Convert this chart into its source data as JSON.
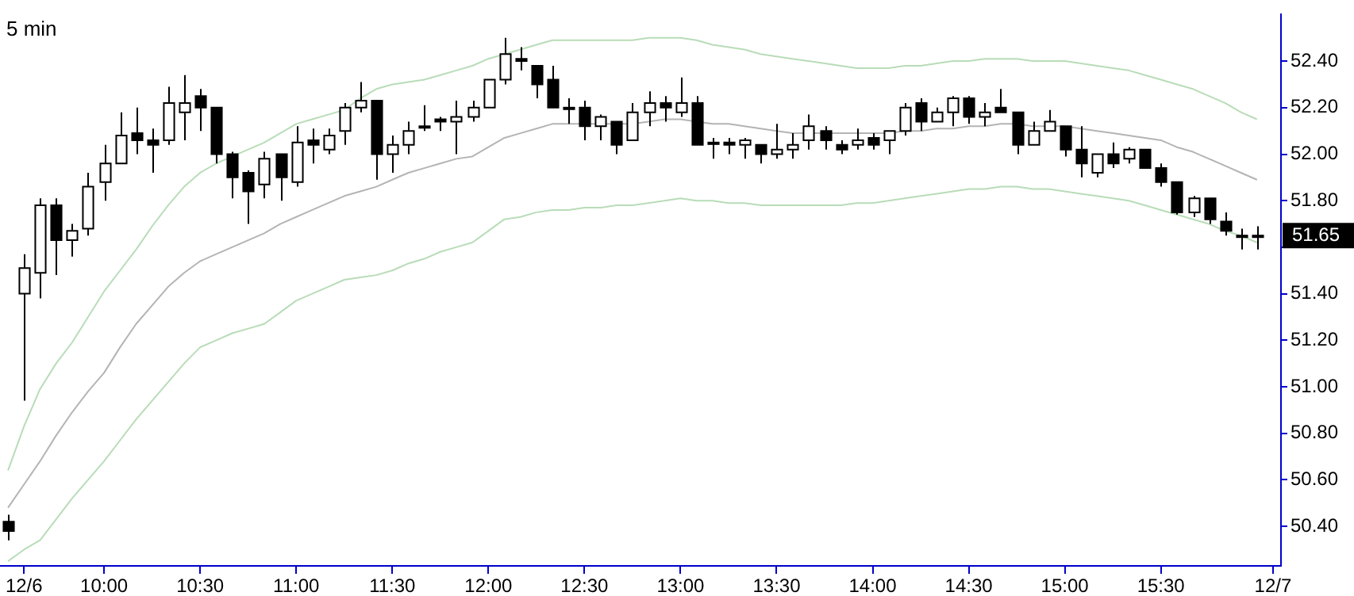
{
  "chart_data": {
    "type": "candlestick",
    "title": "5 min",
    "categories": [
      null,
      "12/6",
      null,
      null,
      null,
      null,
      "10:00",
      null,
      null,
      null,
      null,
      null,
      "10:30",
      null,
      null,
      null,
      null,
      null,
      "11:00",
      null,
      null,
      null,
      null,
      null,
      "11:30",
      null,
      null,
      null,
      null,
      null,
      "12:00",
      null,
      null,
      null,
      null,
      null,
      "12:30",
      null,
      null,
      null,
      null,
      null,
      "13:00",
      null,
      null,
      null,
      null,
      null,
      "13:30",
      null,
      null,
      null,
      null,
      null,
      "14:00",
      null,
      null,
      null,
      null,
      null,
      "14:30",
      null,
      null,
      null,
      null,
      null,
      "15:00",
      null,
      null,
      null,
      null,
      null,
      "15:30",
      null,
      null,
      null,
      null,
      null,
      null,
      "12/7"
    ],
    "ohlc": [
      [
        50.42,
        50.45,
        50.34,
        50.38
      ],
      [
        51.4,
        51.57,
        50.94,
        51.51
      ],
      [
        51.49,
        51.81,
        51.38,
        51.78
      ],
      [
        51.78,
        51.81,
        51.48,
        51.63
      ],
      [
        51.63,
        51.7,
        51.56,
        51.67
      ],
      [
        51.68,
        51.92,
        51.65,
        51.86
      ],
      [
        51.88,
        52.04,
        51.8,
        51.96
      ],
      [
        51.96,
        52.18,
        51.96,
        52.08
      ],
      [
        52.09,
        52.2,
        52.0,
        52.06
      ],
      [
        52.06,
        52.11,
        51.92,
        52.04
      ],
      [
        52.06,
        52.29,
        52.04,
        52.22
      ],
      [
        52.18,
        52.34,
        52.06,
        52.22
      ],
      [
        52.25,
        52.28,
        52.1,
        52.2
      ],
      [
        52.2,
        52.2,
        51.96,
        52.0
      ],
      [
        52.0,
        52.01,
        51.81,
        51.9
      ],
      [
        51.92,
        51.93,
        51.7,
        51.84
      ],
      [
        51.87,
        52.01,
        51.81,
        51.98
      ],
      [
        52.0,
        52.0,
        51.8,
        51.9
      ],
      [
        51.88,
        52.12,
        51.86,
        52.05
      ],
      [
        52.06,
        52.11,
        51.96,
        52.04
      ],
      [
        52.02,
        52.11,
        52.0,
        52.08
      ],
      [
        52.1,
        52.22,
        52.04,
        52.2
      ],
      [
        52.2,
        52.31,
        52.18,
        52.23
      ],
      [
        52.23,
        52.23,
        51.89,
        52.0
      ],
      [
        52.0,
        52.08,
        51.92,
        52.04
      ],
      [
        52.04,
        52.14,
        52.0,
        52.1
      ],
      [
        52.12,
        52.21,
        52.1,
        52.12
      ],
      [
        52.15,
        52.16,
        52.1,
        52.14
      ],
      [
        52.14,
        52.23,
        52.0,
        52.16
      ],
      [
        52.16,
        52.23,
        52.14,
        52.2
      ],
      [
        52.2,
        52.32,
        52.2,
        52.32
      ],
      [
        52.32,
        52.5,
        52.3,
        52.43
      ],
      [
        52.41,
        52.46,
        52.36,
        52.4
      ],
      [
        52.38,
        52.38,
        52.24,
        52.3
      ],
      [
        52.32,
        52.38,
        52.2,
        52.2
      ],
      [
        52.2,
        52.24,
        52.13,
        52.2
      ],
      [
        52.2,
        52.23,
        52.06,
        52.12
      ],
      [
        52.12,
        52.17,
        52.06,
        52.16
      ],
      [
        52.14,
        52.14,
        52.0,
        52.04
      ],
      [
        52.06,
        52.22,
        52.06,
        52.18
      ],
      [
        52.18,
        52.27,
        52.12,
        52.22
      ],
      [
        52.22,
        52.25,
        52.14,
        52.2
      ],
      [
        52.18,
        52.33,
        52.16,
        52.22
      ],
      [
        52.22,
        52.25,
        52.04,
        52.04
      ],
      [
        52.05,
        52.07,
        51.98,
        52.05
      ],
      [
        52.05,
        52.07,
        52.0,
        52.04
      ],
      [
        52.04,
        52.07,
        51.98,
        52.06
      ],
      [
        52.04,
        52.04,
        51.96,
        52.0
      ],
      [
        52.0,
        52.13,
        51.98,
        52.02
      ],
      [
        52.02,
        52.09,
        51.98,
        52.04
      ],
      [
        52.06,
        52.17,
        52.02,
        52.12
      ],
      [
        52.1,
        52.12,
        52.02,
        52.06
      ],
      [
        52.04,
        52.06,
        52.0,
        52.02
      ],
      [
        52.04,
        52.11,
        52.02,
        52.06
      ],
      [
        52.07,
        52.09,
        52.02,
        52.04
      ],
      [
        52.06,
        52.1,
        52.0,
        52.1
      ],
      [
        52.1,
        52.22,
        52.08,
        52.2
      ],
      [
        52.22,
        52.24,
        52.1,
        52.14
      ],
      [
        52.14,
        52.2,
        52.14,
        52.18
      ],
      [
        52.18,
        52.25,
        52.12,
        52.24
      ],
      [
        52.24,
        52.25,
        52.13,
        52.16
      ],
      [
        52.16,
        52.22,
        52.12,
        52.18
      ],
      [
        52.2,
        52.28,
        52.18,
        52.18
      ],
      [
        52.18,
        52.18,
        52.0,
        52.04
      ],
      [
        52.04,
        52.14,
        52.04,
        52.1
      ],
      [
        52.1,
        52.19,
        52.1,
        52.14
      ],
      [
        52.12,
        52.12,
        51.99,
        52.02
      ],
      [
        52.02,
        52.12,
        51.9,
        51.96
      ],
      [
        51.92,
        52.0,
        51.9,
        52.0
      ],
      [
        52.0,
        52.05,
        51.94,
        51.96
      ],
      [
        51.98,
        52.03,
        51.96,
        52.02
      ],
      [
        52.02,
        52.02,
        51.94,
        51.94
      ],
      [
        51.94,
        51.96,
        51.86,
        51.88
      ],
      [
        51.88,
        51.88,
        51.74,
        51.75
      ],
      [
        51.75,
        51.82,
        51.73,
        51.81
      ],
      [
        51.81,
        51.81,
        51.7,
        51.72
      ],
      [
        51.71,
        51.75,
        51.65,
        51.67
      ],
      [
        51.65,
        51.68,
        51.59,
        51.65
      ],
      [
        51.65,
        51.69,
        51.59,
        51.65
      ],
      null
    ],
    "series": [
      {
        "type": "line",
        "color": "#b8dcb8",
        "values": [
          50.64,
          50.83,
          50.99,
          51.1,
          51.19,
          51.3,
          51.41,
          51.5,
          51.59,
          51.69,
          51.78,
          51.86,
          51.92,
          51.96,
          51.99,
          52.02,
          52.05,
          52.09,
          52.13,
          52.15,
          52.17,
          52.19,
          52.24,
          52.28,
          52.3,
          52.31,
          52.32,
          52.34,
          52.36,
          52.38,
          52.41,
          52.43,
          52.45,
          52.47,
          52.49,
          52.49,
          52.49,
          52.49,
          52.49,
          52.49,
          52.5,
          52.5,
          52.5,
          52.49,
          52.47,
          52.46,
          52.45,
          52.43,
          52.42,
          52.41,
          52.4,
          52.39,
          52.38,
          52.37,
          52.37,
          52.37,
          52.38,
          52.38,
          52.39,
          52.4,
          52.4,
          52.41,
          52.41,
          52.41,
          52.4,
          52.4,
          52.4,
          52.39,
          52.38,
          52.37,
          52.36,
          52.34,
          52.32,
          52.3,
          52.28,
          52.25,
          52.22,
          52.18,
          52.15,
          null
        ]
      },
      {
        "type": "line",
        "color": "#b4b4b4",
        "values": [
          50.48,
          50.58,
          50.68,
          50.79,
          50.89,
          50.98,
          51.06,
          51.17,
          51.27,
          51.35,
          51.43,
          51.49,
          51.54,
          51.57,
          51.6,
          51.63,
          51.66,
          51.7,
          51.73,
          51.76,
          51.79,
          51.82,
          51.84,
          51.86,
          51.89,
          51.92,
          51.94,
          51.96,
          51.98,
          51.99,
          52.03,
          52.07,
          52.09,
          52.11,
          52.13,
          52.13,
          52.13,
          52.13,
          52.13,
          52.13,
          52.14,
          52.15,
          52.15,
          52.14,
          52.13,
          52.13,
          52.12,
          52.11,
          52.1,
          52.09,
          52.09,
          52.09,
          52.09,
          52.09,
          52.09,
          52.09,
          52.1,
          52.1,
          52.11,
          52.11,
          52.12,
          52.12,
          52.13,
          52.13,
          52.12,
          52.12,
          52.12,
          52.11,
          52.1,
          52.09,
          52.08,
          52.07,
          52.06,
          52.03,
          52.01,
          51.98,
          51.95,
          51.92,
          51.89,
          null
        ]
      },
      {
        "type": "line",
        "color": "#b8dcb8",
        "values": [
          50.25,
          50.3,
          50.34,
          50.43,
          50.52,
          50.6,
          50.68,
          50.77,
          50.86,
          50.94,
          51.02,
          51.1,
          51.17,
          51.2,
          51.23,
          51.25,
          51.27,
          51.32,
          51.37,
          51.4,
          51.43,
          51.46,
          51.47,
          51.48,
          51.5,
          51.53,
          51.55,
          51.58,
          51.6,
          51.62,
          51.67,
          51.72,
          51.73,
          51.75,
          51.76,
          51.76,
          51.77,
          51.77,
          51.78,
          51.78,
          51.79,
          51.8,
          51.81,
          51.8,
          51.8,
          51.79,
          51.79,
          51.78,
          51.78,
          51.78,
          51.78,
          51.78,
          51.78,
          51.79,
          51.79,
          51.8,
          51.81,
          51.82,
          51.83,
          51.84,
          51.85,
          51.85,
          51.86,
          51.86,
          51.85,
          51.85,
          51.84,
          51.83,
          51.82,
          51.81,
          51.8,
          51.78,
          51.76,
          51.74,
          51.72,
          51.7,
          51.67,
          51.65,
          51.62,
          null
        ]
      }
    ],
    "ylim": [
      50.23,
      52.6
    ],
    "yticks": [
      {
        "value": 50.4,
        "label": "50.40"
      },
      {
        "value": 50.6,
        "label": "50.60"
      },
      {
        "value": 50.8,
        "label": "50.80"
      },
      {
        "value": 51,
        "label": "51.00"
      },
      {
        "value": 51.2,
        "label": "51.20"
      },
      {
        "value": 51.4,
        "label": "51.40"
      },
      {
        "value": 51.6,
        "label": null
      },
      {
        "value": 51.8,
        "label": "51.80"
      },
      {
        "value": 52,
        "label": "52.00"
      },
      {
        "value": 52.2,
        "label": "52.20"
      },
      {
        "value": 52.4,
        "label": "52.40"
      }
    ],
    "annotations": [
      "51.65"
    ]
  }
}
